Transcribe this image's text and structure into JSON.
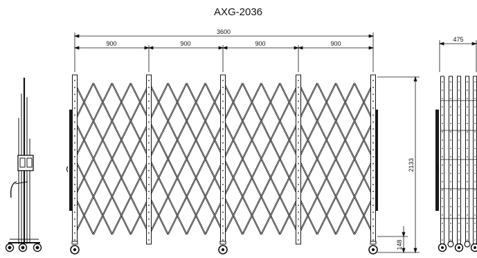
{
  "model": "AXG-2036",
  "front_view": {
    "overall_width": "3600",
    "bay_widths": [
      "900",
      "900",
      "900",
      "900"
    ],
    "height": "2133",
    "base_height": "148"
  },
  "folded_view": {
    "depth": "475"
  },
  "colors": {
    "line": "#111111",
    "pole": "#ffffff",
    "panel": "#1a1a1a"
  }
}
